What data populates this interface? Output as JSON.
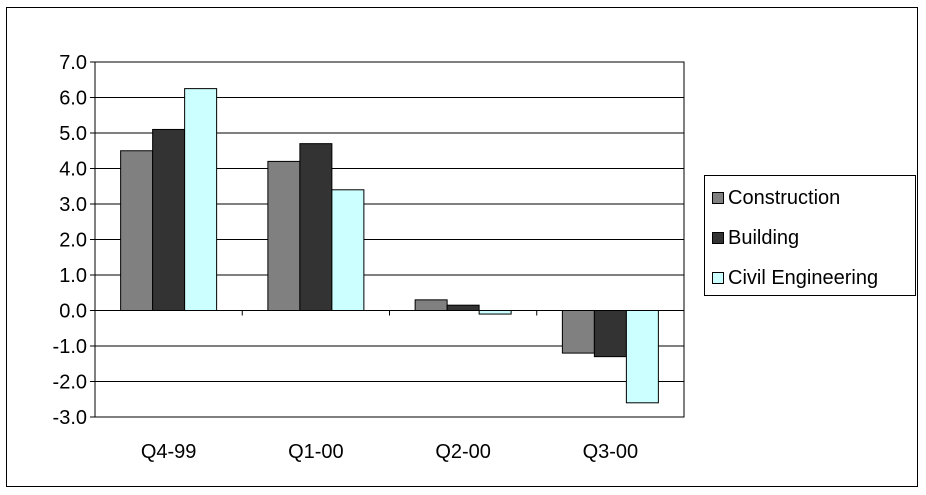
{
  "chart_data": {
    "type": "bar",
    "title": "",
    "xlabel": "",
    "ylabel": "",
    "categories": [
      "Q4-99",
      "Q1-00",
      "Q2-00",
      "Q3-00"
    ],
    "series": [
      {
        "name": "Construction",
        "color": "#808080",
        "values": [
          4.5,
          4.2,
          0.3,
          -1.2
        ]
      },
      {
        "name": "Building",
        "color": "#333333",
        "values": [
          5.1,
          4.7,
          0.15,
          -1.3
        ]
      },
      {
        "name": "Civil Engineering",
        "color": "#ccffff",
        "values": [
          6.25,
          3.4,
          -0.1,
          -2.6
        ]
      }
    ],
    "ylim": [
      -3.0,
      7.0
    ],
    "yticks": [
      "7.0",
      "6.0",
      "5.0",
      "4.0",
      "3.0",
      "2.0",
      "1.0",
      "0.0",
      "-1.0",
      "-2.0",
      "-3.0"
    ],
    "ytick_values": [
      7,
      6,
      5,
      4,
      3,
      2,
      1,
      0,
      -1,
      -2,
      -3
    ],
    "grid": true,
    "legend_position": "right"
  }
}
